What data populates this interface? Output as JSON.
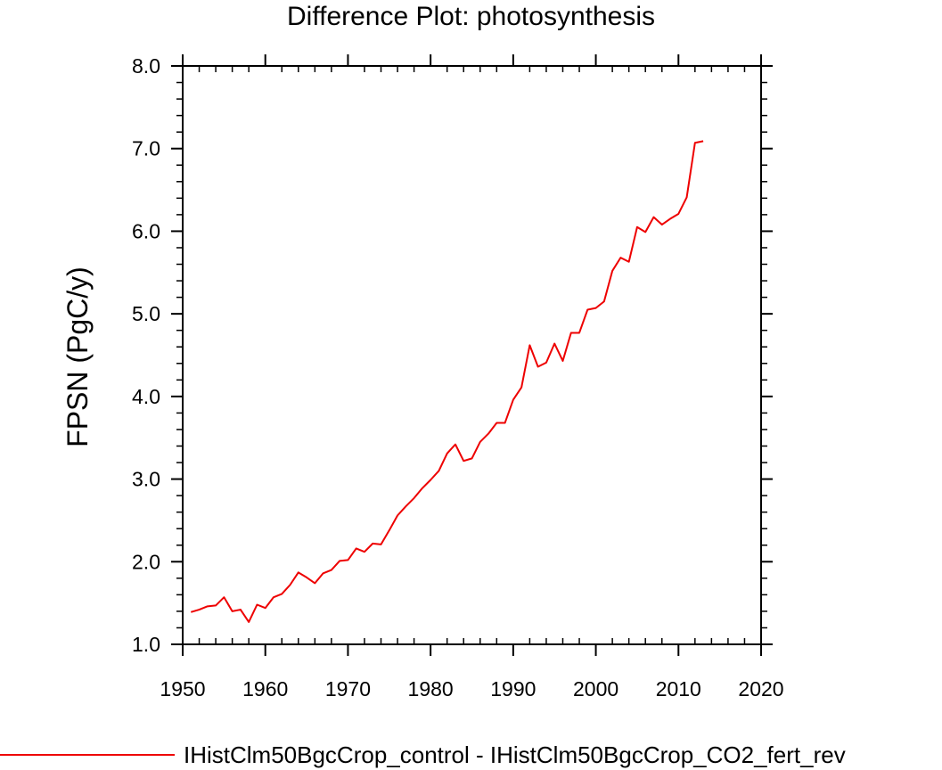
{
  "chart_data": {
    "type": "line",
    "title": "Difference Plot: photosynthesis",
    "xlabel": "",
    "ylabel": "FPSN  (PgC/y)",
    "xlim": [
      1950,
      2020
    ],
    "ylim": [
      1.0,
      8.0
    ],
    "x_ticks": [
      1950,
      1960,
      1970,
      1980,
      1990,
      2000,
      2010,
      2020
    ],
    "x_tick_labels": [
      "1950",
      "1960",
      "1970",
      "1980",
      "1990",
      "2000",
      "2010",
      "2020"
    ],
    "y_ticks": [
      1.0,
      2.0,
      3.0,
      4.0,
      5.0,
      6.0,
      7.0,
      8.0
    ],
    "y_tick_labels": [
      "1.0",
      "2.0",
      "3.0",
      "4.0",
      "5.0",
      "6.0",
      "7.0",
      "8.0"
    ],
    "grid": false,
    "legend_position": "bottom",
    "series": [
      {
        "name": "IHistClm50BgcCrop_control - IHistClm50BgcCrop_CO2_fert_rev",
        "color": "#ee0000",
        "x": [
          1951,
          1952,
          1953,
          1954,
          1955,
          1956,
          1957,
          1958,
          1959,
          1960,
          1961,
          1962,
          1963,
          1964,
          1965,
          1966,
          1967,
          1968,
          1969,
          1970,
          1971,
          1972,
          1973,
          1974,
          1975,
          1976,
          1977,
          1978,
          1979,
          1980,
          1981,
          1982,
          1983,
          1984,
          1985,
          1986,
          1987,
          1988,
          1989,
          1990,
          1991,
          1992,
          1993,
          1994,
          1995,
          1996,
          1997,
          1998,
          1999,
          2000,
          2001,
          2002,
          2003,
          2004,
          2005,
          2006,
          2007,
          2008,
          2009,
          2010,
          2011,
          2012,
          2013
        ],
        "values": [
          1.39,
          1.42,
          1.46,
          1.47,
          1.57,
          1.4,
          1.42,
          1.27,
          1.48,
          1.44,
          1.57,
          1.61,
          1.72,
          1.87,
          1.81,
          1.74,
          1.86,
          1.9,
          2.01,
          2.02,
          2.16,
          2.12,
          2.22,
          2.21,
          2.38,
          2.56,
          2.67,
          2.77,
          2.89,
          2.99,
          3.1,
          3.31,
          3.42,
          3.22,
          3.25,
          3.45,
          3.55,
          3.68,
          3.68,
          3.96,
          4.11,
          4.62,
          4.36,
          4.41,
          4.64,
          4.43,
          4.77,
          4.77,
          5.05,
          5.07,
          5.15,
          5.52,
          5.68,
          5.63,
          6.05,
          5.99,
          6.17,
          6.08,
          6.15,
          6.21,
          6.41,
          7.07,
          7.09
        ]
      }
    ]
  }
}
